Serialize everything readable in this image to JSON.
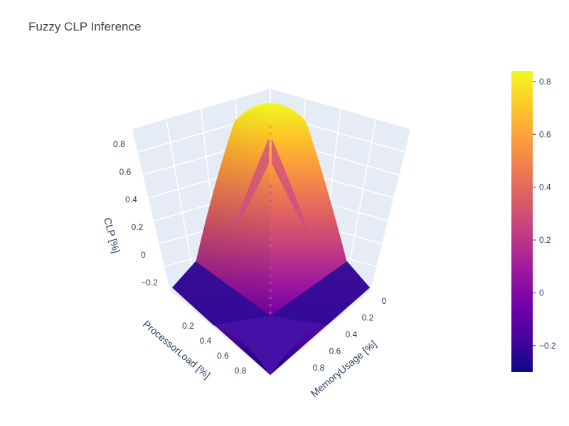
{
  "chart_data": {
    "type": "surface",
    "title": "Fuzzy CLP Inference",
    "axes": {
      "x": {
        "label": "ProcessorLoad [%]",
        "ticks": [
          "0.2",
          "0.4",
          "0.6",
          "0.8"
        ],
        "range": [
          0,
          1
        ]
      },
      "y": {
        "label": "MemoryUsage [%]",
        "ticks": [
          "0",
          "0.2",
          "0.4",
          "0.6",
          "0.8"
        ],
        "range": [
          0,
          1
        ]
      },
      "z": {
        "label": "CLP [%]",
        "ticks": [
          "−0.2",
          "0",
          "0.2",
          "0.4",
          "0.6",
          "0.8"
        ],
        "range": [
          -0.3,
          0.85
        ]
      }
    },
    "colorbar": {
      "ticks": [
        "−0.2",
        "0",
        "0.2",
        "0.4",
        "0.6",
        "0.8"
      ],
      "range": [
        -0.3,
        0.84
      ],
      "colors": [
        "#0d0887",
        "#46039f",
        "#7201a8",
        "#9c179e",
        "#bd3786",
        "#d8576b",
        "#ed7953",
        "#fb9f3a",
        "#fdca26",
        "#f0f921"
      ]
    },
    "surface_summary": {
      "peak_value": 0.84,
      "peak_location": "ProcessorLoad 0, MemoryUsage 0",
      "floor_value": -0.3,
      "floor_location": "ProcessorLoad ≥ 0.1 or MemoryUsage ≥ 0.1 corner region"
    },
    "grid": true,
    "legend": "colorbar-right"
  }
}
